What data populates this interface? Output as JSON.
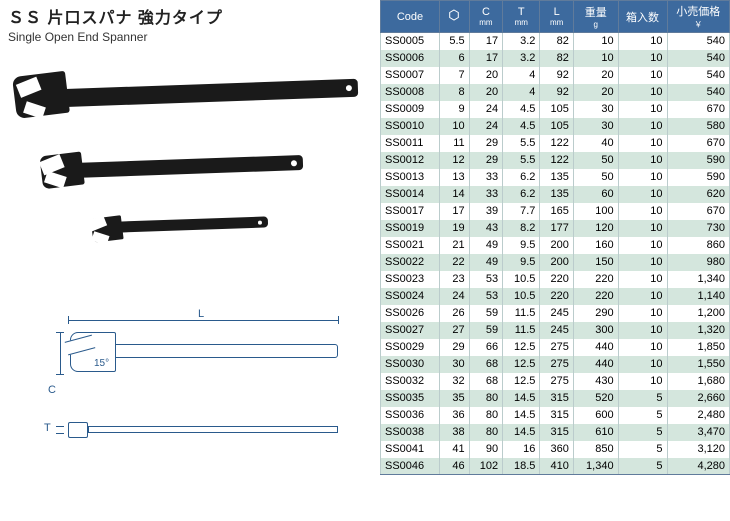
{
  "title": {
    "jp": "ＳＳ 片口スパナ 強力タイプ",
    "en": "Single Open End Spanner"
  },
  "table": {
    "headers": [
      "Code",
      "",
      "C",
      "T",
      "L",
      "重量",
      "箱入数",
      "小売価格"
    ],
    "subheaders": [
      "",
      "",
      "mm",
      "mm",
      "mm",
      "g",
      "",
      "￥"
    ],
    "rows": [
      [
        "SS0005",
        "5.5",
        "17",
        "3.2",
        "82",
        "10",
        "10",
        "540"
      ],
      [
        "SS0006",
        "6",
        "17",
        "3.2",
        "82",
        "10",
        "10",
        "540"
      ],
      [
        "SS0007",
        "7",
        "20",
        "4",
        "92",
        "20",
        "10",
        "540"
      ],
      [
        "SS0008",
        "8",
        "20",
        "4",
        "92",
        "20",
        "10",
        "540"
      ],
      [
        "SS0009",
        "9",
        "24",
        "4.5",
        "105",
        "30",
        "10",
        "670"
      ],
      [
        "SS0010",
        "10",
        "24",
        "4.5",
        "105",
        "30",
        "10",
        "580"
      ],
      [
        "SS0011",
        "11",
        "29",
        "5.5",
        "122",
        "40",
        "10",
        "670"
      ],
      [
        "SS0012",
        "12",
        "29",
        "5.5",
        "122",
        "50",
        "10",
        "590"
      ],
      [
        "SS0013",
        "13",
        "33",
        "6.2",
        "135",
        "50",
        "10",
        "590"
      ],
      [
        "SS0014",
        "14",
        "33",
        "6.2",
        "135",
        "60",
        "10",
        "620"
      ],
      [
        "SS0017",
        "17",
        "39",
        "7.7",
        "165",
        "100",
        "10",
        "670"
      ],
      [
        "SS0019",
        "19",
        "43",
        "8.2",
        "177",
        "120",
        "10",
        "730"
      ],
      [
        "SS0021",
        "21",
        "49",
        "9.5",
        "200",
        "160",
        "10",
        "860"
      ],
      [
        "SS0022",
        "22",
        "49",
        "9.5",
        "200",
        "150",
        "10",
        "980"
      ],
      [
        "SS0023",
        "23",
        "53",
        "10.5",
        "220",
        "220",
        "10",
        "1,340"
      ],
      [
        "SS0024",
        "24",
        "53",
        "10.5",
        "220",
        "220",
        "10",
        "1,140"
      ],
      [
        "SS0026",
        "26",
        "59",
        "11.5",
        "245",
        "290",
        "10",
        "1,200"
      ],
      [
        "SS0027",
        "27",
        "59",
        "11.5",
        "245",
        "300",
        "10",
        "1,320"
      ],
      [
        "SS0029",
        "29",
        "66",
        "12.5",
        "275",
        "440",
        "10",
        "1,850"
      ],
      [
        "SS0030",
        "30",
        "68",
        "12.5",
        "275",
        "440",
        "10",
        "1,550"
      ],
      [
        "SS0032",
        "32",
        "68",
        "12.5",
        "275",
        "430",
        "10",
        "1,680"
      ],
      [
        "SS0035",
        "35",
        "80",
        "14.5",
        "315",
        "520",
        "5",
        "2,660"
      ],
      [
        "SS0036",
        "36",
        "80",
        "14.5",
        "315",
        "600",
        "5",
        "2,480"
      ],
      [
        "SS0038",
        "38",
        "80",
        "14.5",
        "315",
        "610",
        "5",
        "3,470"
      ],
      [
        "SS0041",
        "41",
        "90",
        "16",
        "360",
        "850",
        "5",
        "3,120"
      ],
      [
        "SS0046",
        "46",
        "102",
        "18.5",
        "410",
        "1,340",
        "5",
        "4,280"
      ]
    ]
  },
  "diagram": {
    "L": "L",
    "C": "C",
    "T": "T",
    "angle": "15°"
  },
  "colors": {
    "header_bg": "#3d6a9e",
    "row_even": "#d4e6dd",
    "diagram": "#2a5a8c"
  }
}
